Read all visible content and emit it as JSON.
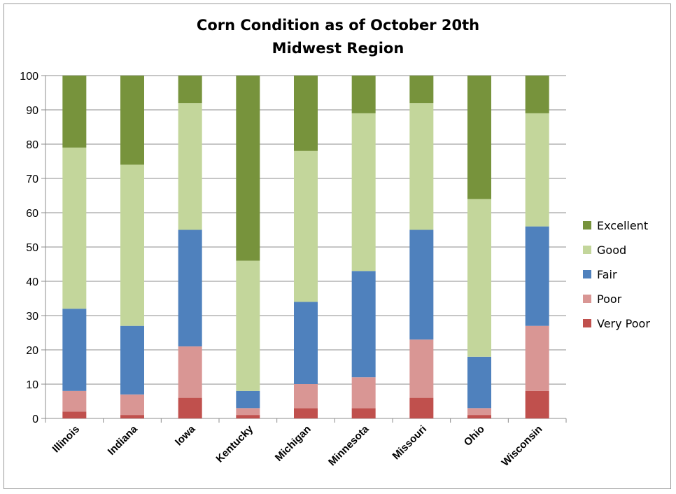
{
  "chart_data": {
    "type": "bar",
    "stacked": true,
    "title": "Corn Condition as of October 20th",
    "subtitle": "Midwest Region",
    "xlabel": "",
    "ylabel": "",
    "ylim": [
      0,
      100
    ],
    "yticks": [
      0,
      10,
      20,
      30,
      40,
      50,
      60,
      70,
      80,
      90,
      100
    ],
    "grid": true,
    "legend_position": "right",
    "categories": [
      "Illinois",
      "Indiana",
      "Iowa",
      "Kentucky",
      "Michigan",
      "Minnesota",
      "Missouri",
      "Ohio",
      "Wisconsin"
    ],
    "series": [
      {
        "name": "Very Poor",
        "color": "#c0504d",
        "values": [
          2,
          1,
          6,
          1,
          3,
          3,
          6,
          1,
          8
        ]
      },
      {
        "name": "Poor",
        "color": "#d99694",
        "values": [
          6,
          6,
          15,
          2,
          7,
          9,
          17,
          2,
          19
        ]
      },
      {
        "name": "Fair",
        "color": "#4f81bd",
        "values": [
          24,
          20,
          34,
          5,
          24,
          31,
          32,
          15,
          29
        ]
      },
      {
        "name": "Good",
        "color": "#c3d69b",
        "values": [
          47,
          47,
          37,
          38,
          44,
          46,
          37,
          46,
          33
        ]
      },
      {
        "name": "Excellent",
        "color": "#77933c",
        "values": [
          21,
          26,
          8,
          54,
          22,
          11,
          8,
          36,
          11
        ]
      }
    ],
    "legend_order": [
      "Excellent",
      "Good",
      "Fair",
      "Poor",
      "Very Poor"
    ]
  }
}
